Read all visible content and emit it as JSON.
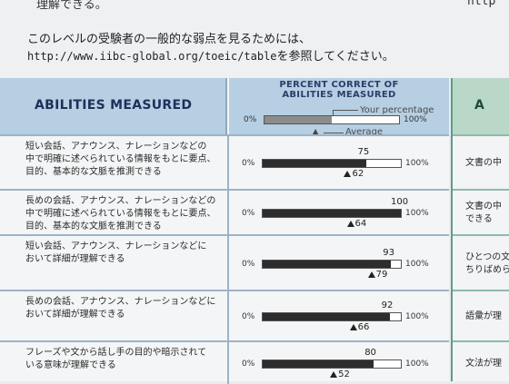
{
  "header_text": {
    "cut_top_line": "理解できる。",
    "cut_top_right": "http",
    "intro_line1": "このレベルの受験者の一般的な弱点を見るためには、",
    "intro_url": "http://www.iibc-global.org/toeic/table",
    "intro_line2_suffix": "を参照してください。"
  },
  "table": {
    "left_header": "ABILITIES MEASURED",
    "right_header_line1": "PERCENT CORRECT OF",
    "right_header_line2": "ABILITIES MEASURED",
    "legend": {
      "your_label": "Your percentage",
      "avg_label": "Average",
      "min_label": "0%",
      "max_label": "100%",
      "your_fraction": 0.5
    },
    "min_label": "0%",
    "max_label": "100%",
    "rows": [
      {
        "line1": "短い会話、アナウンス、ナレーションなどの",
        "line2": "中で明確に述べられている情報をもとに要点、",
        "line3": "目的、基本的な文脈を推測できる",
        "your": 75,
        "avg": 62,
        "your_text": "75",
        "avg_text": "62"
      },
      {
        "line1": "長めの会話、アナウンス、ナレーションなどの",
        "line2": "中で明確に述べられている情報をもとに要点、",
        "line3": "目的、基本的な文脈を推測できる",
        "your": 100,
        "avg": 64,
        "your_text": "100",
        "avg_text": "64"
      },
      {
        "line1": "短い会話、アナウンス、ナレーションなどに",
        "line2": "おいて詳細が理解できる",
        "line3": "",
        "your": 93,
        "avg": 79,
        "your_text": "93",
        "avg_text": "79"
      },
      {
        "line1": "長めの会話、アナウンス、ナレーションなどに",
        "line2": "おいて詳細が理解できる",
        "line3": "",
        "your": 92,
        "avg": 66,
        "your_text": "92",
        "avg_text": "66"
      },
      {
        "line1": "フレーズや文から話し手の目的や暗示されて",
        "line2": "いる意味が理解できる",
        "line3": "",
        "your": 80,
        "avg": 52,
        "your_text": "80",
        "avg_text": "52"
      }
    ]
  },
  "side_table": {
    "header": "A",
    "rows": [
      {
        "line1": "文書の中",
        "line2": ""
      },
      {
        "line1": "文書の中",
        "line2": "できる"
      },
      {
        "line1": "ひとつの文",
        "line2": "ちりばめら"
      },
      {
        "line1": "語彙が理",
        "line2": ""
      },
      {
        "line1": "文法が理",
        "line2": ""
      }
    ]
  }
}
